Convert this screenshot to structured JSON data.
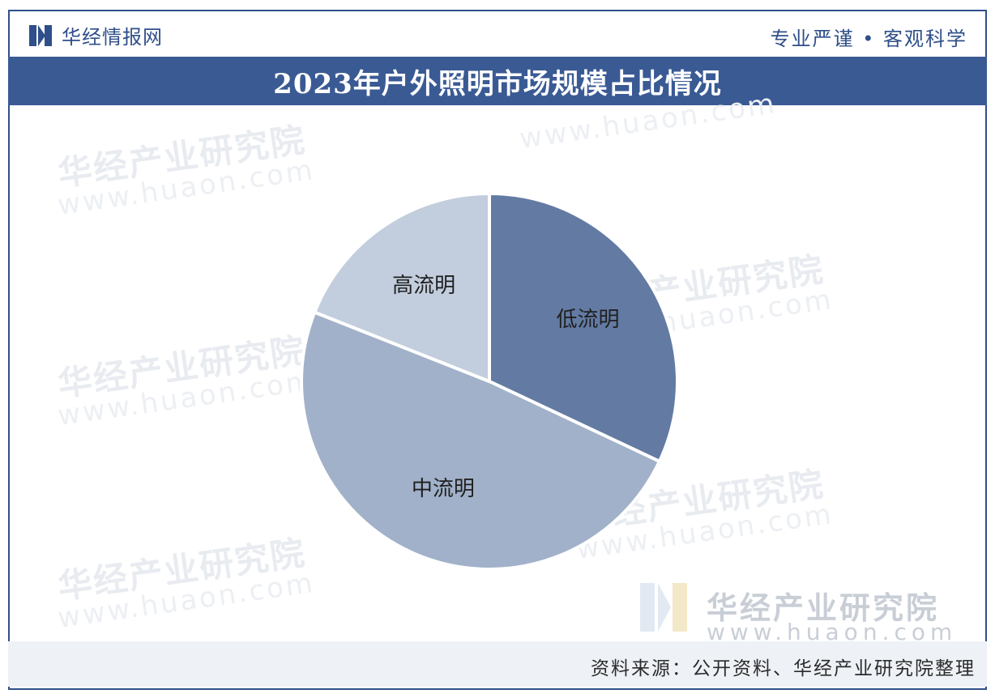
{
  "header": {
    "brand": "华经情报网",
    "slogan": "专业严谨 • 客观科学"
  },
  "watermark": {
    "name": "华经产业研究院",
    "url": "www.huaon.com"
  },
  "footer": {
    "source": "资料来源：公开资料、华经产业研究院整理"
  },
  "colors": {
    "brand": "#2f4f8a",
    "title_band": "#3a5a94",
    "slices": [
      "#637ba3",
      "#a1b1c9",
      "#c2cddd"
    ]
  },
  "chart_data": {
    "type": "pie",
    "title": "2023年户外照明市场规模占比情况",
    "categories": [
      "低流明",
      "中流明",
      "高流明"
    ],
    "values": [
      32,
      49,
      19
    ],
    "start_angle_deg": 0,
    "direction": "clockwise",
    "legend": "none",
    "labels": "inside"
  }
}
